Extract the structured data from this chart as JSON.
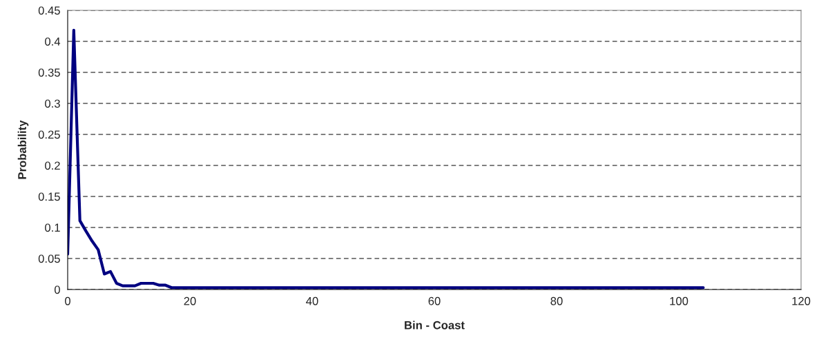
{
  "chart_data": {
    "type": "line",
    "xlabel": "Bin - Coast",
    "ylabel": "Probability",
    "x": [
      0,
      1,
      2,
      3,
      4,
      5,
      6,
      7,
      8,
      9,
      10,
      11,
      12,
      13,
      14,
      15,
      16,
      17,
      18,
      19,
      20,
      21,
      22,
      23,
      24,
      25,
      26,
      27,
      28,
      29,
      30,
      31,
      32,
      33,
      34,
      35,
      36,
      37,
      38,
      39,
      40,
      41,
      42,
      43,
      44,
      45,
      46,
      47,
      48,
      49,
      50,
      51,
      52,
      53,
      54,
      55,
      56,
      57,
      58,
      59,
      60,
      61,
      62,
      63,
      64,
      65,
      66,
      67,
      68,
      69,
      70,
      71,
      72,
      73,
      74,
      75,
      76,
      77,
      78,
      79,
      80,
      81,
      82,
      83,
      84,
      85,
      86,
      87,
      88,
      89,
      90,
      91,
      92,
      93,
      94,
      95,
      96,
      97,
      98,
      99,
      100,
      101,
      102,
      103,
      104
    ],
    "series": [
      {
        "color": "#000080",
        "values": [
          0.057,
          0.418,
          0.111,
          0.094,
          0.078,
          0.064,
          0.025,
          0.029,
          0.01,
          0.006,
          0.006,
          0.006,
          0.01,
          0.01,
          0.01,
          0.007,
          0.007,
          0.003,
          0.003,
          0.003,
          0.003,
          0.003,
          0.003,
          0.003,
          0.003,
          0.003,
          0.003,
          0.003,
          0.003,
          0.003,
          0.003,
          0.003,
          0.003,
          0.003,
          0.003,
          0.003,
          0.003,
          0.003,
          0.003,
          0.003,
          0.003,
          0.003,
          0.003,
          0.003,
          0.003,
          0.003,
          0.003,
          0.003,
          0.003,
          0.003,
          0.003,
          0.003,
          0.003,
          0.003,
          0.003,
          0.003,
          0.003,
          0.003,
          0.003,
          0.003,
          0.003,
          0.003,
          0.003,
          0.003,
          0.003,
          0.003,
          0.003,
          0.003,
          0.003,
          0.003,
          0.003,
          0.003,
          0.003,
          0.003,
          0.003,
          0.003,
          0.003,
          0.003,
          0.003,
          0.003,
          0.003,
          0.003,
          0.003,
          0.003,
          0.003,
          0.003,
          0.003,
          0.003,
          0.003,
          0.003,
          0.003,
          0.003,
          0.003,
          0.003,
          0.003,
          0.003,
          0.003,
          0.003,
          0.003,
          0.003,
          0.003,
          0.003,
          0.003,
          0.003,
          0.003
        ]
      }
    ],
    "xlim": [
      0,
      120
    ],
    "xticks": [
      0,
      20,
      40,
      60,
      80,
      100,
      120
    ],
    "ylim": [
      0,
      0.45
    ],
    "yticks": [
      0,
      0.05,
      0.1,
      0.15,
      0.2,
      0.25,
      0.3,
      0.35,
      0.4,
      0.45
    ],
    "grid": "y",
    "line_style": "solid",
    "marker": "none"
  }
}
